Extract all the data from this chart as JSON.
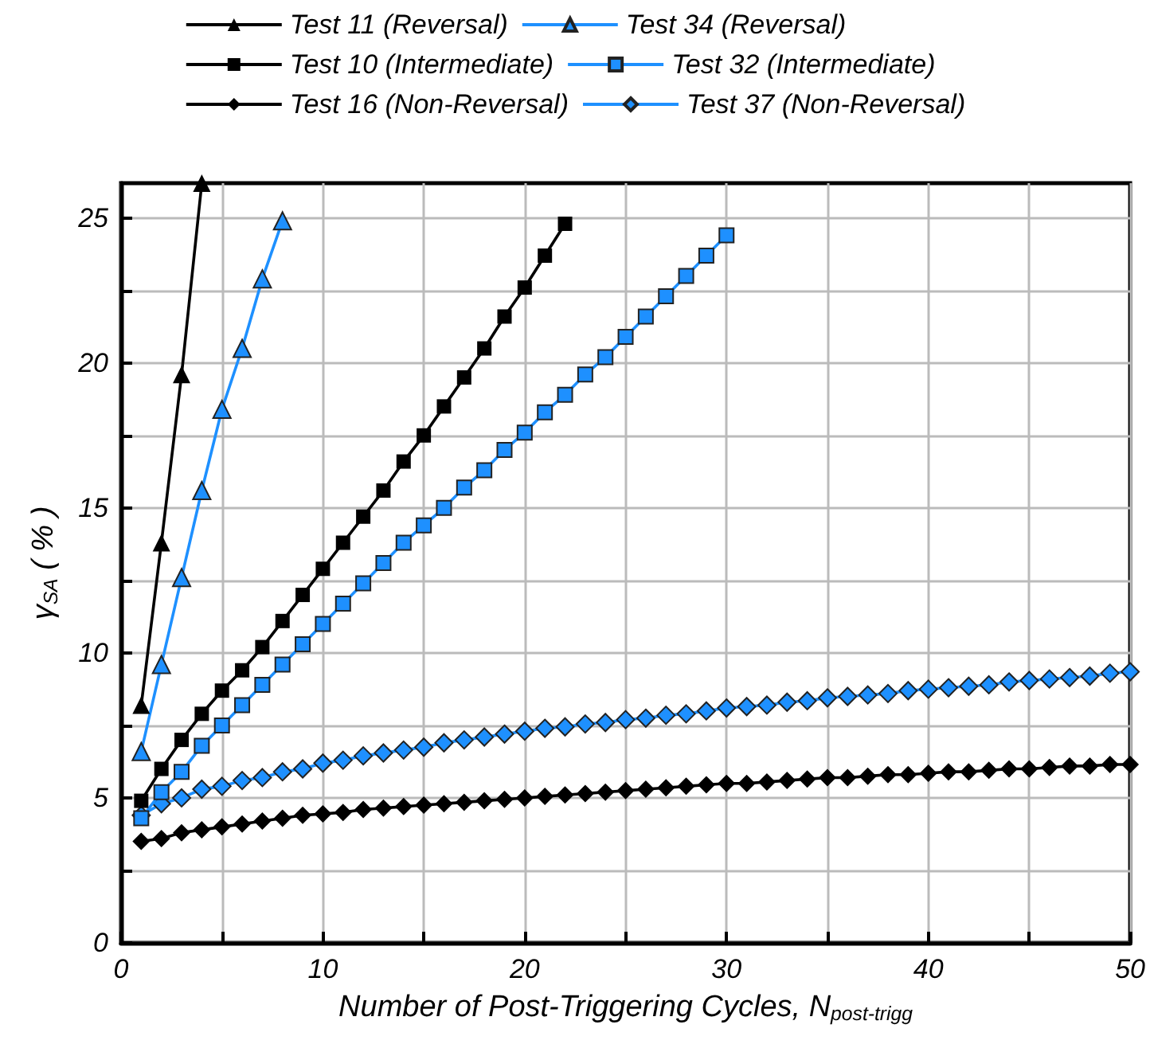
{
  "chart_data": {
    "type": "line",
    "xlabel": "Number of Post-Triggering Cycles, N$_{post-trigg}$",
    "ylabel": "γ$_{SA}$ ( % )",
    "xlim": [
      0,
      50
    ],
    "xticks": [
      0,
      {
        "value": 5,
        "label": null
      },
      10,
      {
        "value": 15,
        "label": null
      },
      20,
      {
        "value": 25,
        "label": null
      },
      30,
      {
        "value": 35,
        "label": null
      },
      40,
      {
        "value": 45,
        "label": null
      },
      50
    ],
    "ylim": [
      0,
      26.2
    ],
    "yticks": [
      0,
      {
        "value": 2.5,
        "label": null
      },
      5,
      {
        "value": 7.5,
        "label": null
      },
      10,
      {
        "value": 12.5,
        "label": null
      },
      15,
      {
        "value": 17.5,
        "label": null
      },
      20,
      {
        "value": 22.5,
        "label": null
      },
      25
    ],
    "grid": true,
    "legend": "top",
    "line_style": "solid",
    "series": [
      {
        "name": "Test 11 (Reversal)",
        "color": "#000000",
        "marker": "triangle",
        "x": [
          1,
          2,
          3,
          4
        ],
        "values": [
          8.2,
          13.8,
          19.6,
          26.2
        ]
      },
      {
        "name": "Test 34 (Reversal)",
        "color": "#1e90ff",
        "marker": "triangle",
        "x": [
          1,
          2,
          3,
          4,
          5,
          6,
          7,
          8
        ],
        "values": [
          6.6,
          9.6,
          12.6,
          15.6,
          18.4,
          20.5,
          22.9,
          24.9
        ]
      },
      {
        "name": "Test 10 (Intermediate)",
        "color": "#000000",
        "marker": "square",
        "x": [
          1,
          2,
          3,
          4,
          5,
          6,
          7,
          8,
          9,
          10,
          11,
          12,
          13,
          14,
          15,
          16,
          17,
          18,
          19,
          20,
          21,
          22
        ],
        "values": [
          4.9,
          6.0,
          7.0,
          7.9,
          8.7,
          9.4,
          10.2,
          11.1,
          12.0,
          12.9,
          13.8,
          14.7,
          15.6,
          16.6,
          17.5,
          18.5,
          19.5,
          20.5,
          21.6,
          22.6,
          23.7,
          24.8
        ]
      },
      {
        "name": "Test 32 (Intermediate)",
        "color": "#1e90ff",
        "marker": "square",
        "x": [
          1,
          2,
          3,
          4,
          5,
          6,
          7,
          8,
          9,
          10,
          11,
          12,
          13,
          14,
          15,
          16,
          17,
          18,
          19,
          20,
          21,
          22,
          23,
          24,
          25,
          26,
          27,
          28,
          29,
          30
        ],
        "values": [
          4.3,
          5.2,
          5.9,
          6.8,
          7.5,
          8.2,
          8.9,
          9.6,
          10.3,
          11.0,
          11.7,
          12.4,
          13.1,
          13.8,
          14.4,
          15.0,
          15.7,
          16.3,
          17.0,
          17.6,
          18.3,
          18.9,
          19.6,
          20.2,
          20.9,
          21.6,
          22.3,
          23.0,
          23.7,
          24.4
        ]
      },
      {
        "name": "Test 16 (Non-Reversal)",
        "color": "#000000",
        "marker": "diamond",
        "x": [
          1,
          2,
          3,
          4,
          5,
          6,
          7,
          8,
          9,
          10,
          11,
          12,
          13,
          14,
          15,
          16,
          17,
          18,
          19,
          20,
          21,
          22,
          23,
          24,
          25,
          26,
          27,
          28,
          29,
          30,
          31,
          32,
          33,
          34,
          35,
          36,
          37,
          38,
          39,
          40,
          41,
          42,
          43,
          44,
          45,
          46,
          47,
          48,
          49,
          50
        ],
        "values": [
          3.5,
          3.6,
          3.8,
          3.9,
          4.0,
          4.1,
          4.2,
          4.3,
          4.4,
          4.45,
          4.5,
          4.6,
          4.65,
          4.7,
          4.75,
          4.8,
          4.85,
          4.9,
          4.95,
          5.0,
          5.05,
          5.1,
          5.15,
          5.2,
          5.25,
          5.3,
          5.35,
          5.4,
          5.45,
          5.5,
          5.5,
          5.55,
          5.6,
          5.65,
          5.7,
          5.7,
          5.75,
          5.8,
          5.8,
          5.85,
          5.9,
          5.9,
          5.95,
          6.0,
          6.0,
          6.05,
          6.1,
          6.1,
          6.15,
          6.15
        ]
      },
      {
        "name": "Test 37 (Non-Reversal)",
        "color": "#1e90ff",
        "marker": "diamond",
        "x": [
          1,
          2,
          3,
          4,
          5,
          6,
          7,
          8,
          9,
          10,
          11,
          12,
          13,
          14,
          15,
          16,
          17,
          18,
          19,
          20,
          21,
          22,
          23,
          24,
          25,
          26,
          27,
          28,
          29,
          30,
          31,
          32,
          33,
          34,
          35,
          36,
          37,
          38,
          39,
          40,
          41,
          42,
          43,
          44,
          45,
          46,
          47,
          48,
          49,
          50
        ],
        "values": [
          4.4,
          4.8,
          5.0,
          5.3,
          5.4,
          5.6,
          5.7,
          5.9,
          6.0,
          6.2,
          6.3,
          6.45,
          6.55,
          6.65,
          6.75,
          6.9,
          7.0,
          7.1,
          7.2,
          7.3,
          7.4,
          7.45,
          7.55,
          7.6,
          7.7,
          7.75,
          7.85,
          7.9,
          8.0,
          8.1,
          8.15,
          8.2,
          8.3,
          8.35,
          8.45,
          8.5,
          8.55,
          8.6,
          8.7,
          8.75,
          8.8,
          8.85,
          8.9,
          9.0,
          9.05,
          9.1,
          9.15,
          9.2,
          9.3,
          9.35
        ]
      }
    ]
  }
}
